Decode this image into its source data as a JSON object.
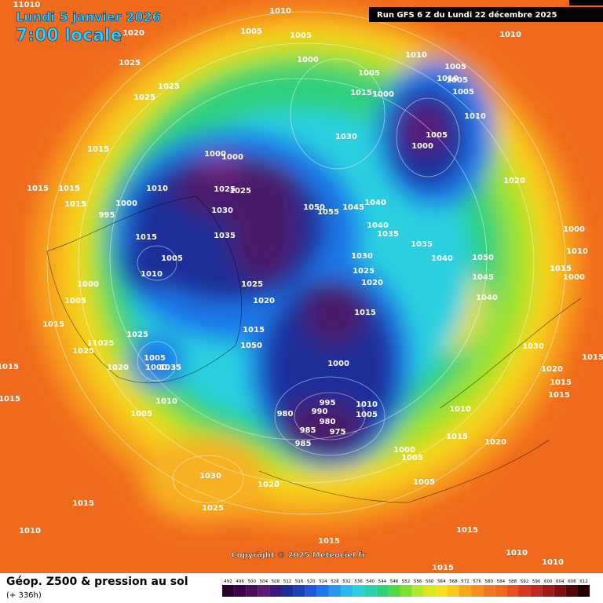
{
  "header": {
    "date": "Lundi 5 janvier 2026",
    "time": "7:00 locale",
    "run": "Run GFS 6 Z du Lundi 22 décembre 2025"
  },
  "copyright": "Copyright © 2025 Meteociel.fr",
  "legend": {
    "title": "Géop. Z500 & pression au sol",
    "subtitle": "(+ 336h)",
    "scale": [
      492,
      496,
      500,
      504,
      508,
      512,
      516,
      520,
      524,
      528,
      532,
      536,
      540,
      544,
      548,
      552,
      556,
      560,
      564,
      568,
      572,
      576,
      580,
      584,
      588,
      592,
      596,
      600,
      604,
      608,
      612
    ]
  },
  "isobars": [
    11010,
    1010,
    1005,
    1005,
    1000,
    1020,
    1025,
    1025,
    1025,
    1010,
    1010,
    1005,
    1005,
    1000,
    1015,
    1010,
    1005,
    1005,
    1010,
    1005,
    1000,
    1030,
    1020,
    1015,
    1015,
    1015,
    1015,
    995,
    1000,
    1000,
    1000,
    1010,
    1025,
    1025,
    1030,
    1050,
    1055,
    1045,
    1040,
    1040,
    1035,
    1035,
    1040,
    1050,
    1045,
    1040,
    1015,
    1035,
    1005,
    1010,
    1000,
    1030,
    1025,
    1020,
    1025,
    1020,
    1015,
    1005,
    1015,
    1025,
    11025,
    1025,
    1020,
    1005,
    1000,
    1035,
    1010,
    1005,
    1050,
    1015,
    1000,
    995,
    990,
    980,
    980,
    985,
    975,
    985,
    1010,
    1005,
    1010,
    1015,
    1020,
    1000,
    1005,
    1005,
    1030,
    1025,
    1020,
    1015,
    1010,
    1015,
    1015,
    1015,
    1010,
    1010,
    1015,
    1000,
    1000,
    1010,
    1030,
    1020,
    1015,
    1015,
    1015,
    1015,
    1015
  ]
}
